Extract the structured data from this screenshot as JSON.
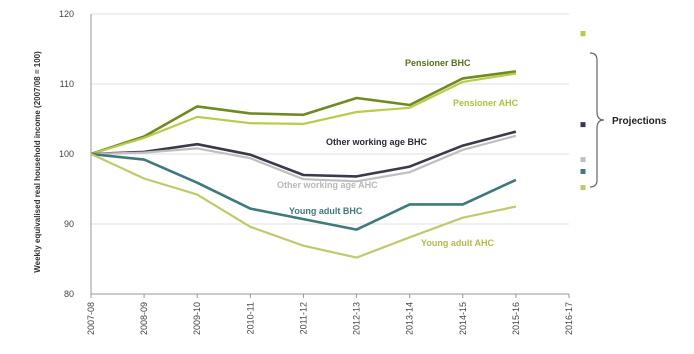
{
  "chart_data": {
    "type": "line",
    "title": "",
    "xlabel": "",
    "ylabel": "Weekly equivalised real household income (2007/08 = 100)",
    "x": [
      "2007-08",
      "2008-09",
      "2009-10",
      "2010-11",
      "2011-12",
      "2012-13",
      "2013-14",
      "2014-15",
      "2015-16",
      "2016-17"
    ],
    "ylim": [
      80,
      120
    ],
    "yticks": [
      80,
      90,
      100,
      110,
      120
    ],
    "grid": true,
    "series": [
      {
        "name": "Pensioner BHC",
        "color": "#6f8a1e",
        "values": [
          100,
          102.5,
          106.8,
          105.8,
          105.6,
          108,
          107,
          110.8,
          111.8,
          null
        ],
        "projection": 117.2
      },
      {
        "name": "Pensioner AHC",
        "color": "#b9cc4a",
        "values": [
          100,
          102.3,
          105.3,
          104.4,
          104.3,
          106,
          106.6,
          110.3,
          111.5,
          null
        ],
        "projection": 117.2
      },
      {
        "name": "Other working age BHC",
        "color": "#3a3a4a",
        "values": [
          100,
          100.3,
          101.4,
          99.9,
          97,
          96.8,
          98.2,
          101.2,
          103.2,
          null
        ],
        "projection": 104.2
      },
      {
        "name": "Other working age AHC",
        "color": "#bfbfbf",
        "values": [
          100,
          100.2,
          100.8,
          99.4,
          96.4,
          96.1,
          97.4,
          100.6,
          102.6,
          null
        ],
        "projection": 99.2
      },
      {
        "name": "Young adult BHC",
        "color": "#3e7a7a",
        "values": [
          100,
          99.2,
          95.9,
          92.2,
          90.7,
          89.2,
          92.8,
          92.8,
          96.3,
          null
        ],
        "projection": 97.5
      },
      {
        "name": "Young adult AHC",
        "color": "#c2c96a",
        "values": [
          100,
          96.5,
          94.2,
          89.6,
          86.9,
          85.2,
          88.1,
          90.9,
          92.5,
          null
        ],
        "projection": 95.2
      }
    ],
    "labels": {
      "pensioner_bhc": "Pensioner BHC",
      "pensioner_ahc": "Pensioner AHC",
      "other_bhc": "Other working age BHC",
      "other_ahc": "Other working age AHC",
      "young_bhc": "Young adult BHC",
      "young_ahc": "Young adult AHC",
      "projections": "Projections"
    }
  }
}
